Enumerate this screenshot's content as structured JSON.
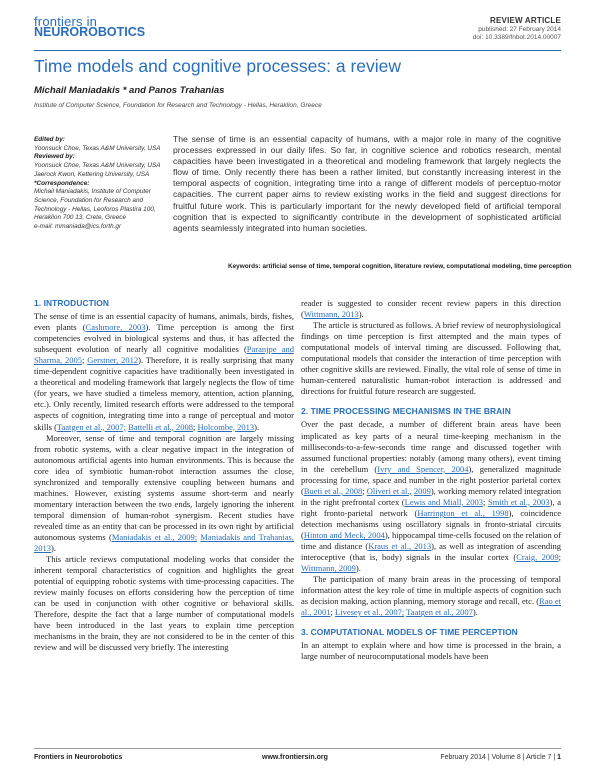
{
  "header": {
    "journal_line1": "frontiers in",
    "journal_line2": "NEUROROBOTICS",
    "article_type": "REVIEW ARTICLE",
    "published": "published: 27 February 2014",
    "doi": "doi: 10.3389/fnbot.2014.00007"
  },
  "title": "Time models and cognitive processes: a review",
  "authors": "Michail Maniadakis * and Panos Trahanias",
  "affiliation": "Institute of Computer Science, Foundation for Research and Technology - Hellas, Heraklion, Greece",
  "editorial": {
    "edited_by_label": "Edited by:",
    "edited_by": "Yoonsuck Choe, Texas A&M University, USA",
    "reviewed_by_label": "Reviewed by:",
    "reviewer1": "Yoonsuck Choe, Texas A&M University, USA",
    "reviewer2": "Jaerock Kwon, Kettering University, USA",
    "correspondence_label": "*Correspondence:",
    "correspondence": "Michail Maniadakis, Institute of Computer Science, Foundation for Research and Technology - Hellas, Leoforos Plastira 100, Heraklion 700 13, Crete, Greece",
    "email": "e-mail: mmaniada@ics.forth.gr"
  },
  "abstract": "The sense of time is an essential capacity of humans, with a major role in many of the cognitive processes expressed in our daily lifes. So far, in cognitive science and robotics research, mental capacities have been investigated in a theoretical and modeling framework that largely neglects the flow of time. Only recently there has been a rather limited, but constantly increasing interest in the temporal aspects of cognition, integrating time into a range of different models of perceptuo-motor capacities. The current paper aims to review existing works in the field and suggest directions for fruitful future work. This is particularly important for the newly developed field of artificial temporal cognition that is expected to significantly contribute in the development of sophisticated artificial agents seamlessly integrated into human societies.",
  "keywords": {
    "label": "Keywords:",
    "value": "artificial sense of time, temporal cognition, literature review, computational modeling, time perception"
  },
  "sections": {
    "intro_heading": "1. INTRODUCTION",
    "time_heading": "2. TIME PROCESSING MECHANISMS IN THE BRAIN",
    "models_heading": "3. COMPUTATIONAL MODELS OF TIME PERCEPTION"
  },
  "refs": {
    "r1": "Cashmore, 2003",
    "r2": "Paranjpe and Sharma, 2005",
    "r3": "Gerstner, 2012",
    "r4": "Taatgen et al., 2007;",
    "r5": "Battelli et al., 2008",
    "r6": "Holcombe, 2013",
    "r7": "Maniadakis et al., 2009;",
    "r8": "Maniadakis and Trahanias, 2013",
    "r9": "Wittmann, 2013",
    "r10": "Ivry and Spencer, 2004",
    "r11": "Bueti et al., 2008",
    "r12": "Oliveri et al.,",
    "r13": "2009",
    "r14": "Lewis and Miall, 2003",
    "r15": "Smith et al., 2003",
    "r16": "Harrington et al., 1998",
    "r17": "Hinton and Meck, 2004",
    "r18": "Kraus et al., 2013",
    "r19": "Craig, 2009",
    "r20": "Wittmann, 2009",
    "r21": "Rao et al., 2001",
    "r22": "Livesey et al., 2007;",
    "r23": "Taatgen et al., 2007"
  },
  "footer": {
    "journal": "Frontiers in Neurorobotics",
    "url": "www.frontiersin.org",
    "issue": "February 2014 | Volume 8 | Article 7 |",
    "page": "1"
  }
}
